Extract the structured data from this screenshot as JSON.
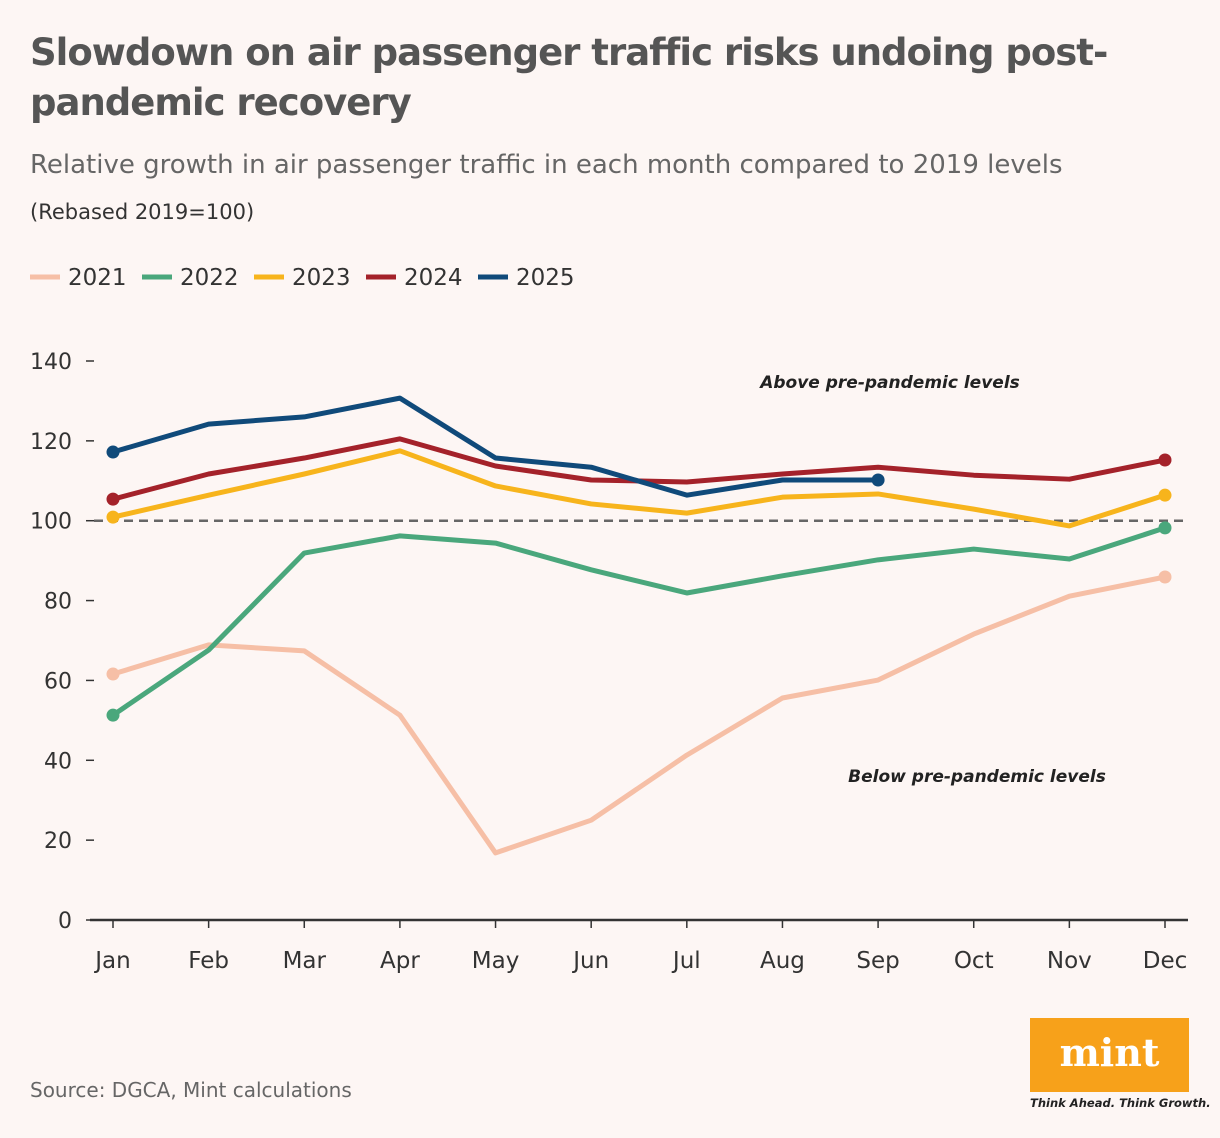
{
  "chart_data": {
    "type": "line",
    "title": "Slowdown on air passenger traffic risks undoing post-pandemic recovery",
    "subtitle": "Relative growth in air passenger traffic in each month compared to 2019 levels",
    "y_label": "(Rebased 2019=100)",
    "categories": [
      "Jan",
      "Feb",
      "Mar",
      "Apr",
      "May",
      "Jun",
      "Jul",
      "Aug",
      "Sep",
      "Oct",
      "Nov",
      "Dec"
    ],
    "series": [
      {
        "name": "2021",
        "color": "#f6bfa6",
        "values": [
          61.6,
          68.9,
          67.4,
          51.3,
          16.8,
          25,
          41.3,
          55.6,
          60.1,
          71.6,
          81.1,
          85.9
        ]
      },
      {
        "name": "2022",
        "color": "#4aa77c",
        "values": [
          51.3,
          67.6,
          91.9,
          96.2,
          94.4,
          87.7,
          81.9,
          86.2,
          90.2,
          92.9,
          90.4,
          98.2
        ]
      },
      {
        "name": "2023",
        "color": "#f7b41c",
        "values": [
          100.9,
          106.4,
          111.7,
          117.5,
          108.7,
          104.2,
          101.9,
          105.9,
          106.7,
          102.9,
          98.7,
          106.4
        ]
      },
      {
        "name": "2024",
        "color": "#a4222a",
        "values": [
          105.4,
          111.7,
          115.7,
          120.5,
          113.7,
          110.2,
          109.7,
          111.7,
          113.4,
          111.4,
          110.4,
          115.2
        ]
      },
      {
        "name": "2025",
        "color": "#104a7a",
        "values": [
          117.2,
          124.2,
          126,
          130.7,
          115.7,
          113.4,
          106.4,
          110.2,
          110.2,
          null,
          null,
          null
        ]
      }
    ],
    "ylim": [
      0,
      140
    ],
    "yticks": [
      0,
      20,
      40,
      60,
      80,
      100,
      120,
      140
    ],
    "reference_line": 100,
    "annotations": [
      "Above pre-pandemic levels",
      "Below pre-pandemic levels"
    ],
    "legend": "top-left",
    "source": "Source: DGCA, Mint calculations",
    "logo": "mint",
    "tagline": "Think Ahead. Think Growth."
  }
}
